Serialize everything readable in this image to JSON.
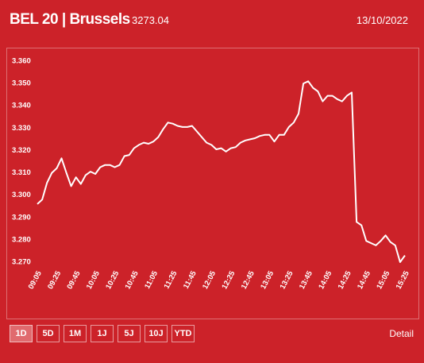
{
  "header": {
    "title": "BEL 20 | Brussels",
    "value": "3273.04",
    "date": "13/10/2022"
  },
  "controls": {
    "buttons": [
      "1D",
      "5D",
      "1M",
      "1J",
      "5J",
      "10J",
      "YTD"
    ],
    "selected": "1D",
    "detail": "Detail"
  },
  "chart_data": {
    "type": "line",
    "color": "#ffffff",
    "categories": [
      "09:05",
      null,
      null,
      null,
      "09:25",
      null,
      null,
      null,
      "09:45",
      null,
      null,
      null,
      "10:05",
      null,
      null,
      null,
      "10:25",
      null,
      null,
      null,
      "10:45",
      null,
      null,
      null,
      "11:05",
      null,
      null,
      null,
      "11:25",
      null,
      null,
      null,
      "11:45",
      null,
      null,
      null,
      "12:05",
      null,
      null,
      null,
      "12:25",
      null,
      null,
      null,
      "12:45",
      null,
      null,
      null,
      "13:05",
      null,
      null,
      null,
      "13:25",
      null,
      null,
      null,
      "13:45",
      null,
      null,
      null,
      "14:05",
      null,
      null,
      null,
      "14:25",
      null,
      null,
      null,
      "14:45",
      null,
      null,
      null,
      "15:05",
      null,
      null,
      null,
      "15:25"
    ],
    "values": [
      3296,
      3298,
      3305.5,
      3310,
      3312,
      3316.5,
      3310,
      3304,
      3308,
      3305,
      3309,
      3310.5,
      3309.5,
      3312.5,
      3313.5,
      3313.5,
      3312.5,
      3313.5,
      3317.5,
      3318,
      3321,
      3322.5,
      3323.5,
      3323,
      3324,
      3326,
      3329.5,
      3332.5,
      3332,
      3331,
      3330.5,
      3330.5,
      3331,
      3328.5,
      3326,
      3323.5,
      3322.5,
      3320.5,
      3321,
      3319.5,
      3321,
      3321.5,
      3323.5,
      3324.5,
      3325,
      3325.5,
      3326.5,
      3327,
      3327,
      3324,
      3327,
      3327,
      3330.5,
      3332.5,
      3336.5,
      3350,
      3351,
      3348,
      3346.5,
      3342,
      3344.5,
      3344.5,
      3343,
      3342,
      3344.5,
      3346,
      3288,
      3286.5,
      3279.5,
      3278.5,
      3277.5,
      3279.5,
      3282,
      3279,
      3277.5,
      3270,
      3273
    ],
    "ylim": [
      3265,
      3362
    ],
    "yticks": [
      {
        "value": 3270,
        "label": "3.270"
      },
      {
        "value": 3280,
        "label": "3.280"
      },
      {
        "value": 3290,
        "label": "3.290"
      },
      {
        "value": 3300,
        "label": "3.300"
      },
      {
        "value": 3310,
        "label": "3.310"
      },
      {
        "value": 3320,
        "label": "3.320"
      },
      {
        "value": 3330,
        "label": "3.330"
      },
      {
        "value": 3340,
        "label": "3.340"
      },
      {
        "value": 3350,
        "label": "3.350"
      },
      {
        "value": 3360,
        "label": "3.360"
      }
    ]
  }
}
